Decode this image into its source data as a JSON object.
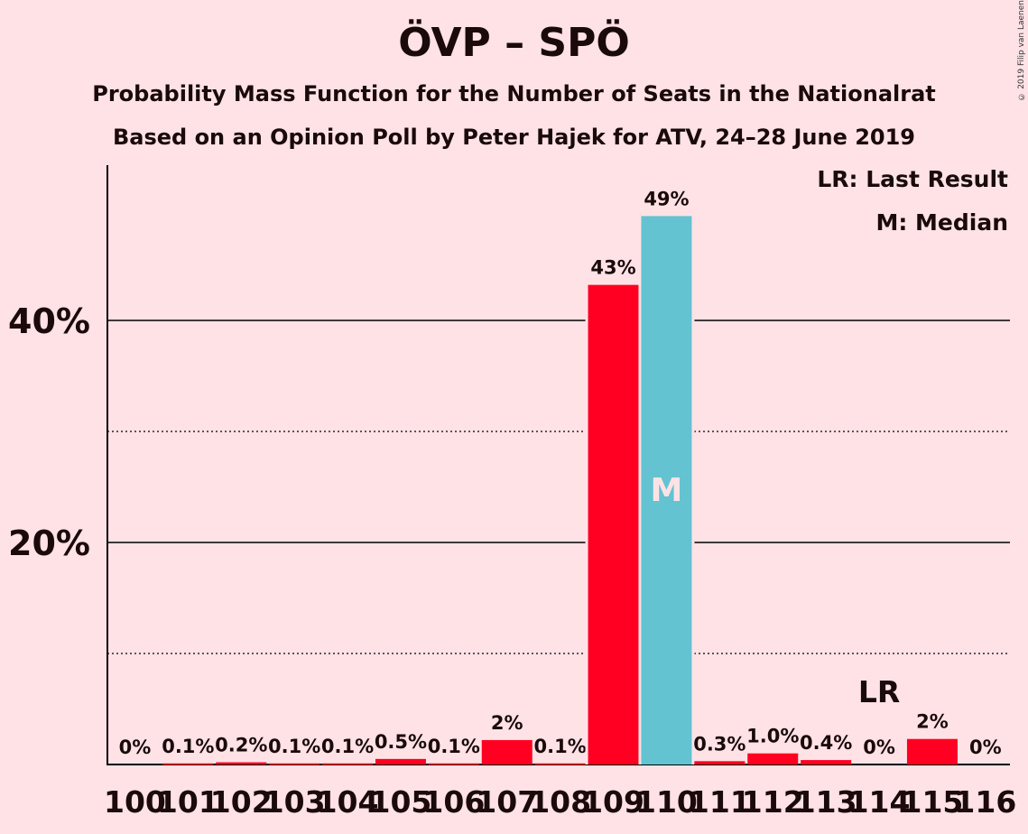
{
  "title": "ÖVP – SPÖ",
  "subtitle_1": "Probability Mass Function for the Number of Seats in the Nationalrat",
  "subtitle_2": "Based on an Opinion Poll by Peter Hajek for ATV, 24–28 June 2019",
  "copyright": "© 2019 Filip van Laenen",
  "legend": {
    "last_result": "LR: Last Result",
    "median": "M: Median"
  },
  "colors": {
    "background": "#FFE2E6",
    "bar_primary": "#FF0022",
    "bar_median": "#63C3D1"
  },
  "chart_data": {
    "type": "bar",
    "categories": [
      "100",
      "101",
      "102",
      "103",
      "104",
      "105",
      "106",
      "107",
      "108",
      "109",
      "110",
      "111",
      "112",
      "113",
      "114",
      "115",
      "116"
    ],
    "values": [
      0,
      0.1,
      0.2,
      0.1,
      0.1,
      0.5,
      0.1,
      2.2,
      0.1,
      43.2,
      49.4,
      0.3,
      1.0,
      0.4,
      0,
      2.3,
      0
    ],
    "data_labels": [
      "0%",
      "0.1%",
      "0.2%",
      "0.1%",
      "0.1%",
      "0.5%",
      "0.1%",
      "2%",
      "0.1%",
      "43%",
      "49%",
      "0.3%",
      "1.0%",
      "0.4%",
      "0%",
      "2%",
      "0%"
    ],
    "median_category": "110",
    "median_marker": "M",
    "last_result_category": "114",
    "last_result_marker": "LR",
    "yticks": [
      20,
      40
    ],
    "ytick_labels": [
      "20%",
      "40%"
    ],
    "ylim": [
      0,
      54
    ],
    "grid": "solid major at 20% steps, dotted minor at 10% steps",
    "xlabel": "",
    "ylabel": ""
  }
}
